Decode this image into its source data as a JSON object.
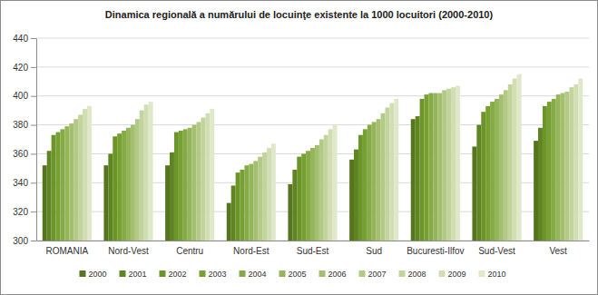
{
  "chart_data": {
    "type": "bar",
    "title": "Dinamica regională a numărului de locuinţe existente la 1000 locuitori (2000-2010)",
    "categories": [
      "ROMANIA",
      "Nord-Vest",
      "Centru",
      "Nord-Est",
      "Sud-Est",
      "Sud",
      "Bucuresti-Ilfov",
      "Sud-Vest",
      "Vest"
    ],
    "series": [
      {
        "name": "2000",
        "color": "#55761e",
        "values": [
          352,
          352,
          352,
          326,
          339,
          356,
          384,
          365,
          369
        ]
      },
      {
        "name": "2001",
        "color": "#5f8422",
        "values": [
          362,
          360,
          361,
          338,
          349,
          363,
          386,
          380,
          378
        ]
      },
      {
        "name": "2002",
        "color": "#6b9429",
        "values": [
          373,
          372,
          375,
          347,
          358,
          373,
          398,
          389,
          393
        ]
      },
      {
        "name": "2003",
        "color": "#77a032",
        "values": [
          375,
          374,
          376,
          349,
          360,
          377,
          401,
          393,
          396
        ]
      },
      {
        "name": "2004",
        "color": "#86aa45",
        "values": [
          377,
          376,
          377,
          352,
          362,
          380,
          402,
          396,
          398
        ]
      },
      {
        "name": "2005",
        "color": "#95b55a",
        "values": [
          379,
          378,
          378,
          353,
          364,
          382,
          402,
          398,
          401
        ]
      },
      {
        "name": "2006",
        "color": "#a4bf70",
        "values": [
          381,
          380,
          380,
          355,
          366,
          384,
          402,
          401,
          402
        ]
      },
      {
        "name": "2007",
        "color": "#b3c986",
        "values": [
          384,
          384,
          382,
          358,
          370,
          388,
          404,
          404,
          403
        ]
      },
      {
        "name": "2008",
        "color": "#c2d49c",
        "values": [
          387,
          390,
          385,
          361,
          373,
          392,
          405,
          408,
          406
        ]
      },
      {
        "name": "2009",
        "color": "#d1deb3",
        "values": [
          391,
          394,
          388,
          364,
          377,
          395,
          406,
          412,
          408
        ]
      },
      {
        "name": "2010",
        "color": "#e0e8ca",
        "values": [
          393,
          396,
          391,
          367,
          380,
          398,
          407,
          415,
          412
        ]
      }
    ],
    "ylim": [
      300,
      440
    ],
    "yticks": [
      300,
      320,
      340,
      360,
      380,
      400,
      420,
      440
    ],
    "grid": true,
    "legend": "bottom"
  }
}
